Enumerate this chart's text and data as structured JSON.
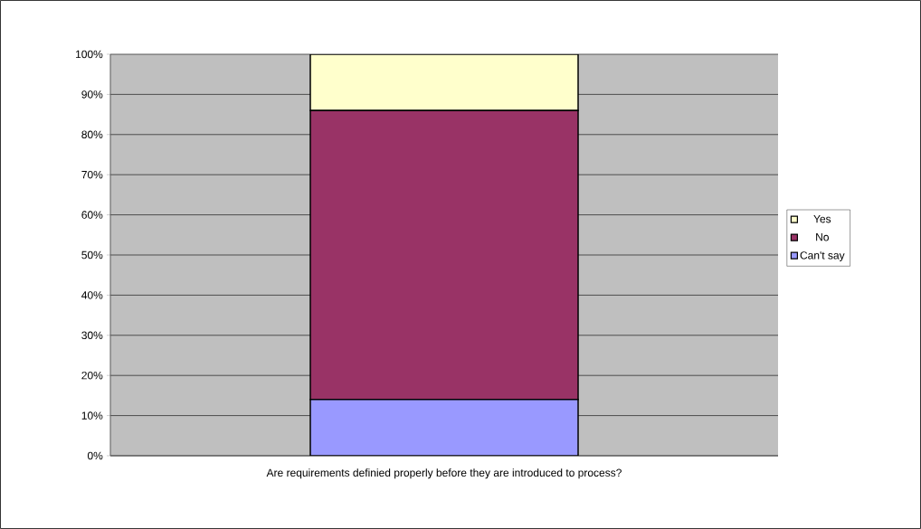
{
  "chart_data": {
    "type": "bar",
    "stacked": true,
    "categories": [
      "Are requirements definied properly before they are introduced to process?"
    ],
    "series": [
      {
        "name": "Can't say",
        "color": "#9999ff",
        "values": [
          14
        ]
      },
      {
        "name": "No",
        "color": "#993366",
        "values": [
          72
        ]
      },
      {
        "name": "Yes",
        "color": "#ffffcc",
        "values": [
          14
        ]
      }
    ],
    "ylim": [
      0,
      100
    ],
    "yticks": [
      {
        "value": 0,
        "label": "0%"
      },
      {
        "value": 10,
        "label": "10%"
      },
      {
        "value": 20,
        "label": "20%"
      },
      {
        "value": 30,
        "label": "30%"
      },
      {
        "value": 40,
        "label": "40%"
      },
      {
        "value": 50,
        "label": "50%"
      },
      {
        "value": 60,
        "label": "60%"
      },
      {
        "value": 70,
        "label": "70%"
      },
      {
        "value": 80,
        "label": "80%"
      },
      {
        "value": 90,
        "label": "90%"
      },
      {
        "value": 100,
        "label": "100%"
      }
    ],
    "grid": "y",
    "legend": "right"
  }
}
